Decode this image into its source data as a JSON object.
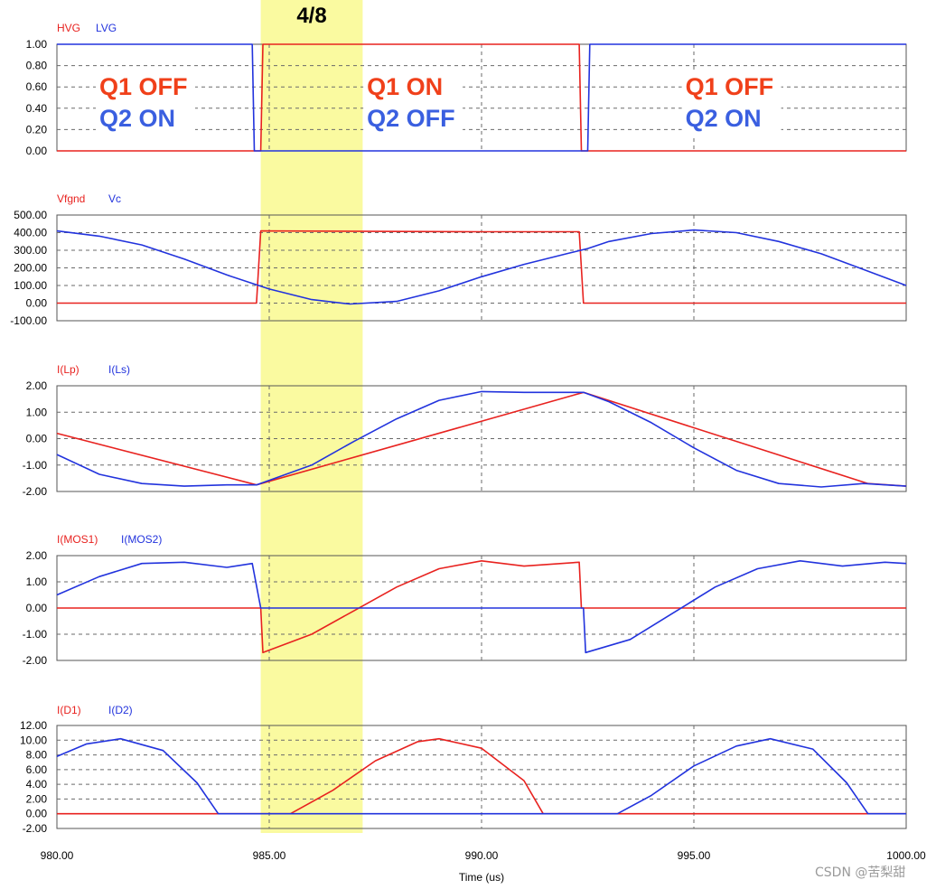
{
  "highlight_label": "4/8",
  "highlight_range": [
    984.8,
    987.2
  ],
  "colors": {
    "red": "#e8221f",
    "blue": "#2233dd",
    "highlight": "#fafaa0",
    "grid": "#6a6a6a",
    "annotation_red": "#f0401a",
    "annotation_blue": "#3a5fe0"
  },
  "xaxis": {
    "label": "Time (us)",
    "ticks": [
      "980.00",
      "985.00",
      "990.00",
      "995.00",
      "1000.00"
    ],
    "min": 980,
    "max": 1000,
    "grid_at": [
      985,
      990,
      995
    ]
  },
  "annotations": [
    {
      "line1": "Q1 OFF",
      "line2": "Q2 ON",
      "x": 981
    },
    {
      "line1": "Q1 ON",
      "line2": "Q2 OFF",
      "x": 987.3
    },
    {
      "line1": "Q1 OFF",
      "line2": "Q2 ON",
      "x": 994.8
    }
  ],
  "watermark": "CSDN @苦梨甜",
  "chart_data": [
    {
      "type": "line",
      "signal_labels": [
        "HVG",
        "LVG"
      ],
      "yticks": [
        "1.00",
        "0.80",
        "0.60",
        "0.40",
        "0.20",
        "0.00"
      ],
      "ylim": [
        0,
        1
      ],
      "series": [
        {
          "name": "HVG",
          "color": "red",
          "points": [
            [
              980,
              0
            ],
            [
              984.8,
              0
            ],
            [
              984.85,
              1
            ],
            [
              992.3,
              1
            ],
            [
              992.35,
              0
            ],
            [
              1000,
              0
            ]
          ]
        },
        {
          "name": "LVG",
          "color": "blue",
          "points": [
            [
              980,
              1
            ],
            [
              984.6,
              1
            ],
            [
              984.65,
              0
            ],
            [
              992.5,
              0
            ],
            [
              992.55,
              1
            ],
            [
              1000,
              1
            ]
          ]
        }
      ]
    },
    {
      "type": "line",
      "signal_labels": [
        "Vfgnd",
        "Vc"
      ],
      "yticks": [
        "500.00",
        "400.00",
        "300.00",
        "200.00",
        "100.00",
        "0.00",
        "-100.00"
      ],
      "ylim": [
        -100,
        500
      ],
      "series": [
        {
          "name": "Vfgnd",
          "color": "red",
          "points": [
            [
              980,
              0
            ],
            [
              984.7,
              0
            ],
            [
              984.8,
              410
            ],
            [
              990,
              405
            ],
            [
              992.3,
              405
            ],
            [
              992.4,
              0
            ],
            [
              1000,
              0
            ]
          ]
        },
        {
          "name": "Vc",
          "color": "blue",
          "points": [
            [
              980,
              410
            ],
            [
              981,
              380
            ],
            [
              982,
              330
            ],
            [
              983,
              250
            ],
            [
              984,
              160
            ],
            [
              985,
              80
            ],
            [
              986,
              20
            ],
            [
              986.9,
              -5
            ],
            [
              988,
              10
            ],
            [
              989,
              70
            ],
            [
              990,
              150
            ],
            [
              991,
              220
            ],
            [
              992,
              280
            ],
            [
              992.5,
              310
            ],
            [
              993,
              350
            ],
            [
              994,
              395
            ],
            [
              995,
              415
            ],
            [
              996,
              400
            ],
            [
              997,
              350
            ],
            [
              998,
              280
            ],
            [
              999,
              190
            ],
            [
              1000,
              100
            ]
          ]
        }
      ]
    },
    {
      "type": "line",
      "signal_labels": [
        "I(Lp)",
        "I(Ls)"
      ],
      "yticks": [
        "2.00",
        "1.00",
        "0.00",
        "-1.00",
        "-2.00"
      ],
      "ylim": [
        -2,
        2
      ],
      "series": [
        {
          "name": "I(Lp)",
          "color": "red",
          "points": [
            [
              980,
              0.2
            ],
            [
              984.7,
              -1.75
            ],
            [
              992.4,
              1.75
            ],
            [
              999.1,
              -1.7
            ],
            [
              1000,
              -1.8
            ]
          ]
        },
        {
          "name": "I(Ls)",
          "color": "blue",
          "points": [
            [
              980,
              -0.6
            ],
            [
              981,
              -1.35
            ],
            [
              982,
              -1.7
            ],
            [
              983,
              -1.8
            ],
            [
              984,
              -1.75
            ],
            [
              984.7,
              -1.75
            ],
            [
              986,
              -1.0
            ],
            [
              987,
              -0.1
            ],
            [
              988,
              0.75
            ],
            [
              989,
              1.45
            ],
            [
              990,
              1.78
            ],
            [
              991,
              1.75
            ],
            [
              992.4,
              1.75
            ],
            [
              993,
              1.4
            ],
            [
              994,
              0.6
            ],
            [
              995,
              -0.35
            ],
            [
              996,
              -1.2
            ],
            [
              997,
              -1.7
            ],
            [
              998,
              -1.83
            ],
            [
              999,
              -1.7
            ],
            [
              1000,
              -1.8
            ]
          ]
        }
      ]
    },
    {
      "type": "line",
      "signal_labels": [
        "I(MOS1)",
        "I(MOS2)"
      ],
      "yticks": [
        "2.00",
        "1.00",
        "0.00",
        "-1.00",
        "-2.00"
      ],
      "ylim": [
        -2,
        2
      ],
      "series": [
        {
          "name": "I(MOS1)",
          "color": "red",
          "points": [
            [
              980,
              0
            ],
            [
              984.8,
              0
            ],
            [
              984.85,
              -1.7
            ],
            [
              986,
              -1.0
            ],
            [
              987,
              -0.1
            ],
            [
              988,
              0.8
            ],
            [
              989,
              1.5
            ],
            [
              990,
              1.8
            ],
            [
              991,
              1.6
            ],
            [
              992.3,
              1.75
            ],
            [
              992.35,
              0
            ],
            [
              1000,
              0
            ]
          ]
        },
        {
          "name": "I(MOS2)",
          "color": "blue",
          "points": [
            [
              980,
              0.5
            ],
            [
              981,
              1.2
            ],
            [
              982,
              1.7
            ],
            [
              983,
              1.75
            ],
            [
              984,
              1.55
            ],
            [
              984.6,
              1.7
            ],
            [
              984.8,
              0
            ],
            [
              992.4,
              0
            ],
            [
              992.45,
              -1.7
            ],
            [
              993.5,
              -1.2
            ],
            [
              994.5,
              -0.2
            ],
            [
              995.5,
              0.8
            ],
            [
              996.5,
              1.5
            ],
            [
              997.5,
              1.8
            ],
            [
              998.5,
              1.6
            ],
            [
              999.5,
              1.75
            ],
            [
              1000,
              1.7
            ]
          ]
        }
      ]
    },
    {
      "type": "line",
      "signal_labels": [
        "I(D1)",
        "I(D2)"
      ],
      "yticks": [
        "12.00",
        "10.00",
        "8.00",
        "6.00",
        "4.00",
        "2.00",
        "0.00",
        "-2.00"
      ],
      "ylim": [
        -2,
        12
      ],
      "series": [
        {
          "name": "I(D1)",
          "color": "red",
          "points": [
            [
              980,
              0
            ],
            [
              985.5,
              0
            ],
            [
              986.5,
              3.2
            ],
            [
              987.5,
              7.2
            ],
            [
              988.5,
              9.8
            ],
            [
              989,
              10.2
            ],
            [
              990,
              8.9
            ],
            [
              991,
              4.5
            ],
            [
              991.45,
              0
            ],
            [
              1000,
              0
            ]
          ]
        },
        {
          "name": "I(D2)",
          "color": "blue",
          "points": [
            [
              980,
              7.8
            ],
            [
              980.7,
              9.5
            ],
            [
              981.5,
              10.2
            ],
            [
              982.5,
              8.6
            ],
            [
              983.3,
              4.2
            ],
            [
              983.8,
              0
            ],
            [
              993.2,
              0
            ],
            [
              994,
              2.5
            ],
            [
              995,
              6.5
            ],
            [
              996,
              9.2
            ],
            [
              996.8,
              10.2
            ],
            [
              997.8,
              8.8
            ],
            [
              998.6,
              4.2
            ],
            [
              999.1,
              0
            ],
            [
              1000,
              0
            ]
          ]
        }
      ]
    }
  ]
}
